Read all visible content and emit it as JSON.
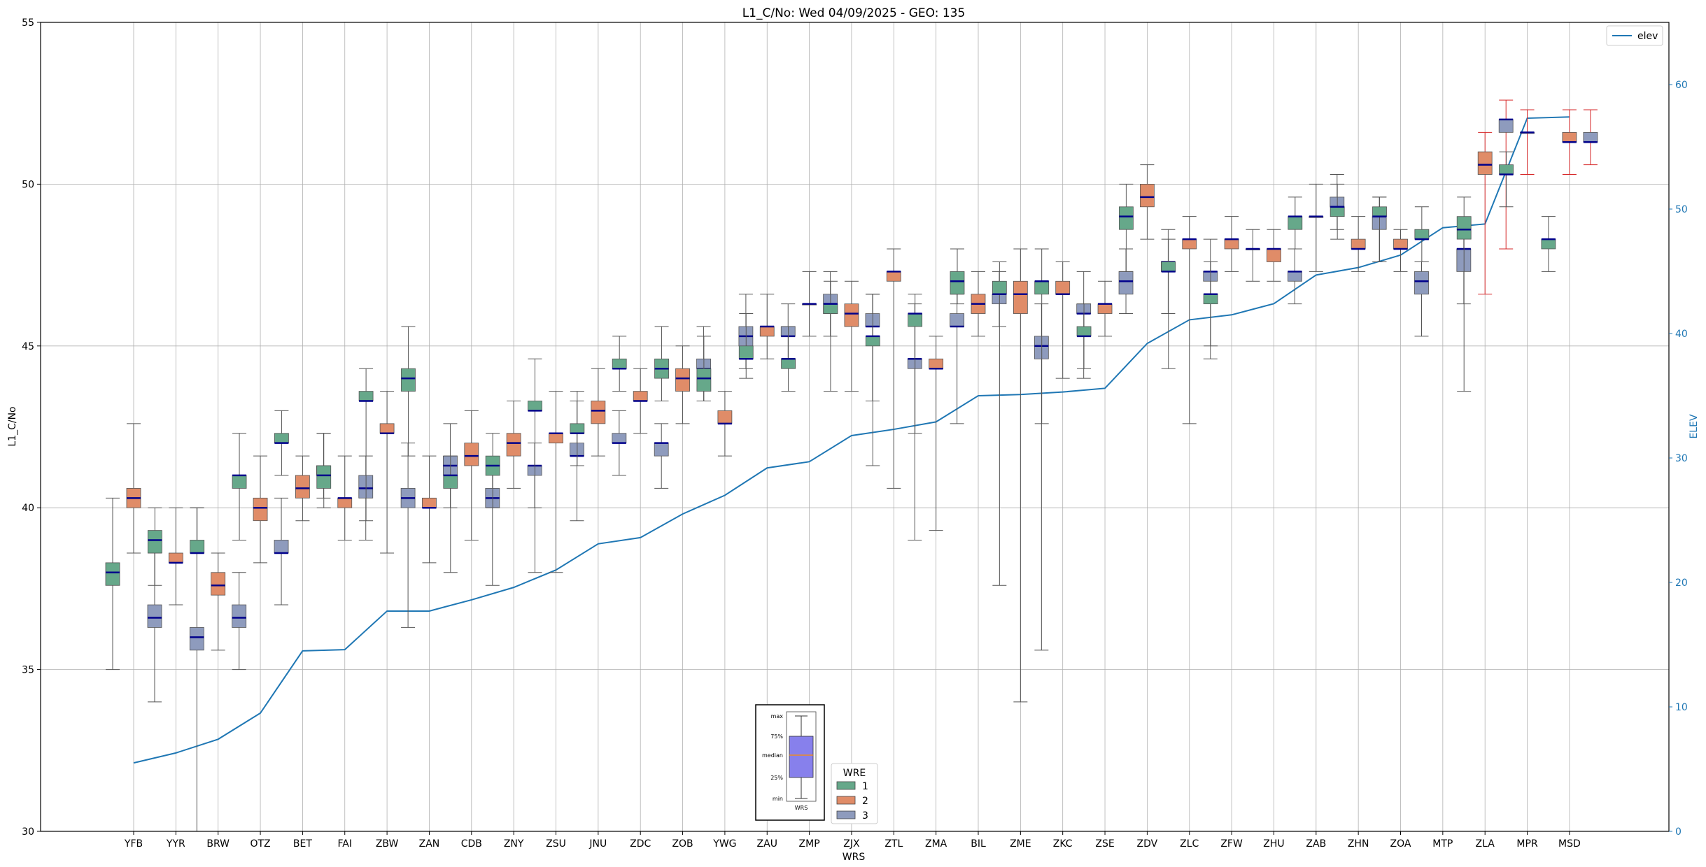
{
  "chart_data": {
    "type": "box",
    "title": "L1_C/No: Wed 04/09/2025 - GEO: 135",
    "xlabel": "WRS",
    "ylabel": "L1_C/No",
    "y2label": "ELEV",
    "ylim": [
      30,
      55
    ],
    "y2lim": [
      0,
      65
    ],
    "yticks": [
      30,
      35,
      40,
      45,
      50,
      55
    ],
    "y2ticks": [
      0,
      10,
      20,
      30,
      40,
      50,
      60
    ],
    "grid": true,
    "colors": {
      "1": "#66a88a",
      "2": "#e08c68",
      "3": "#8e9bbd",
      "elev": "#1f77b4",
      "median": "#00008b",
      "whisker": "#555555",
      "whisker_alt": "#d62728"
    },
    "categories": [
      "YFB",
      "YYR",
      "BRW",
      "OTZ",
      "BET",
      "FAI",
      "ZBW",
      "ZAN",
      "CDB",
      "ZNY",
      "ZSU",
      "JNU",
      "ZDC",
      "ZOB",
      "YWG",
      "ZAU",
      "ZMP",
      "ZJX",
      "ZTL",
      "ZMA",
      "BIL",
      "ZME",
      "ZKC",
      "ZSE",
      "ZDV",
      "ZLC",
      "ZFW",
      "ZHU",
      "ZAB",
      "ZHN",
      "ZOA",
      "MTP",
      "ZLA",
      "MPR",
      "MSD"
    ],
    "elev": {
      "name": "elev",
      "values": [
        5.5,
        6.3,
        7.4,
        9.5,
        14.5,
        14.6,
        17.7,
        17.7,
        18.6,
        19.6,
        21.0,
        23.1,
        23.6,
        25.5,
        27.0,
        29.2,
        29.7,
        31.8,
        32.3,
        32.9,
        35.0,
        35.1,
        35.3,
        35.6,
        39.2,
        41.1,
        41.5,
        42.4,
        44.7,
        45.3,
        46.3,
        48.5,
        48.8,
        57.3,
        57.4
      ]
    },
    "boxes": [
      {
        "station": "YFB",
        "wre": 1,
        "min": 35.0,
        "q1": 37.6,
        "median": 38.0,
        "q3": 38.3,
        "max": 40.3
      },
      {
        "station": "YFB",
        "wre": 2,
        "min": 38.6,
        "q1": 40.0,
        "median": 40.3,
        "q3": 40.6,
        "max": 42.6
      },
      {
        "station": "YFB",
        "wre": 3,
        "min": 34.0,
        "q1": 36.3,
        "median": 36.6,
        "q3": 37.0,
        "max": 38.6
      },
      {
        "station": "YYR",
        "wre": 1,
        "min": 37.6,
        "q1": 38.6,
        "median": 39.0,
        "q3": 39.3,
        "max": 40.0
      },
      {
        "station": "YYR",
        "wre": 2,
        "min": 37.0,
        "q1": 38.3,
        "median": 38.3,
        "q3": 38.6,
        "max": 40.0
      },
      {
        "station": "YYR",
        "wre": 3,
        "min": 30.0,
        "q1": 35.6,
        "median": 36.0,
        "q3": 36.3,
        "max": 40.0
      },
      {
        "station": "BRW",
        "wre": 1,
        "min": 38.6,
        "q1": 38.6,
        "median": 38.6,
        "q3": 39.0,
        "max": 40.0
      },
      {
        "station": "BRW",
        "wre": 2,
        "min": 35.6,
        "q1": 37.3,
        "median": 37.6,
        "q3": 38.0,
        "max": 38.6
      },
      {
        "station": "BRW",
        "wre": 3,
        "min": 35.0,
        "q1": 36.3,
        "median": 36.6,
        "q3": 37.0,
        "max": 38.0
      },
      {
        "station": "OTZ",
        "wre": 1,
        "min": 39.0,
        "q1": 40.6,
        "median": 41.0,
        "q3": 41.0,
        "max": 42.3
      },
      {
        "station": "OTZ",
        "wre": 2,
        "min": 38.3,
        "q1": 39.6,
        "median": 40.0,
        "q3": 40.3,
        "max": 41.6
      },
      {
        "station": "OTZ",
        "wre": 3,
        "min": 37.0,
        "q1": 38.6,
        "median": 38.6,
        "q3": 39.0,
        "max": 40.3
      },
      {
        "station": "BET",
        "wre": 1,
        "min": 41.0,
        "q1": 42.0,
        "median": 42.0,
        "q3": 42.3,
        "max": 43.0
      },
      {
        "station": "BET",
        "wre": 2,
        "min": 39.6,
        "q1": 40.3,
        "median": 40.6,
        "q3": 41.0,
        "max": 41.6
      },
      {
        "station": "BET",
        "wre": 3,
        "min": 40.3,
        "q1": 41.0,
        "median": 41.0,
        "q3": 41.3,
        "max": 42.3
      },
      {
        "station": "FAI",
        "wre": 1,
        "min": 40.0,
        "q1": 40.6,
        "median": 41.0,
        "q3": 41.3,
        "max": 42.3
      },
      {
        "station": "FAI",
        "wre": 2,
        "min": 39.0,
        "q1": 40.0,
        "median": 40.3,
        "q3": 40.3,
        "max": 41.6
      },
      {
        "station": "FAI",
        "wre": 3,
        "min": 39.0,
        "q1": 40.3,
        "median": 40.6,
        "q3": 41.0,
        "max": 41.6
      },
      {
        "station": "ZBW",
        "wre": 1,
        "min": 39.6,
        "q1": 43.3,
        "median": 43.3,
        "q3": 43.6,
        "max": 44.3
      },
      {
        "station": "ZBW",
        "wre": 2,
        "min": 38.6,
        "q1": 42.3,
        "median": 42.3,
        "q3": 42.6,
        "max": 43.6
      },
      {
        "station": "ZBW",
        "wre": 3,
        "min": 36.3,
        "q1": 40.0,
        "median": 40.3,
        "q3": 40.6,
        "max": 42.0
      },
      {
        "station": "ZAN",
        "wre": 1,
        "min": 41.6,
        "q1": 43.6,
        "median": 44.0,
        "q3": 44.3,
        "max": 45.6
      },
      {
        "station": "ZAN",
        "wre": 2,
        "min": 38.3,
        "q1": 40.0,
        "median": 40.0,
        "q3": 40.3,
        "max": 41.6
      },
      {
        "station": "ZAN",
        "wre": 3,
        "min": 40.0,
        "q1": 41.0,
        "median": 41.3,
        "q3": 41.6,
        "max": 42.6
      },
      {
        "station": "CDB",
        "wre": 1,
        "min": 38.0,
        "q1": 40.6,
        "median": 41.0,
        "q3": 41.0,
        "max": 41.6
      },
      {
        "station": "CDB",
        "wre": 2,
        "min": 39.0,
        "q1": 41.3,
        "median": 41.6,
        "q3": 42.0,
        "max": 43.0
      },
      {
        "station": "CDB",
        "wre": 3,
        "min": 37.6,
        "q1": 40.0,
        "median": 40.3,
        "q3": 40.6,
        "max": 41.3
      },
      {
        "station": "ZNY",
        "wre": 1,
        "min": 40.0,
        "q1": 41.0,
        "median": 41.3,
        "q3": 41.6,
        "max": 42.3
      },
      {
        "station": "ZNY",
        "wre": 2,
        "min": 40.6,
        "q1": 41.6,
        "median": 42.0,
        "q3": 42.3,
        "max": 43.3
      },
      {
        "station": "ZNY",
        "wre": 3,
        "min": 40.0,
        "q1": 41.0,
        "median": 41.3,
        "q3": 41.3,
        "max": 42.0
      },
      {
        "station": "ZSU",
        "wre": 1,
        "min": 38.0,
        "q1": 43.0,
        "median": 43.0,
        "q3": 43.3,
        "max": 44.6
      },
      {
        "station": "ZSU",
        "wre": 2,
        "min": 38.0,
        "q1": 42.0,
        "median": 42.3,
        "q3": 42.3,
        "max": 43.6
      },
      {
        "station": "ZSU",
        "wre": 3,
        "min": 39.6,
        "q1": 41.6,
        "median": 41.6,
        "q3": 42.0,
        "max": 43.3
      },
      {
        "station": "JNU",
        "wre": 1,
        "min": 41.3,
        "q1": 42.3,
        "median": 42.3,
        "q3": 42.6,
        "max": 43.6
      },
      {
        "station": "JNU",
        "wre": 2,
        "min": 41.6,
        "q1": 42.6,
        "median": 43.0,
        "q3": 43.3,
        "max": 44.3
      },
      {
        "station": "JNU",
        "wre": 3,
        "min": 41.0,
        "q1": 42.0,
        "median": 42.0,
        "q3": 42.3,
        "max": 43.0
      },
      {
        "station": "ZDC",
        "wre": 1,
        "min": 43.6,
        "q1": 44.3,
        "median": 44.3,
        "q3": 44.6,
        "max": 45.3
      },
      {
        "station": "ZDC",
        "wre": 2,
        "min": 42.3,
        "q1": 43.3,
        "median": 43.3,
        "q3": 43.6,
        "max": 44.3
      },
      {
        "station": "ZDC",
        "wre": 3,
        "min": 40.6,
        "q1": 41.6,
        "median": 42.0,
        "q3": 42.0,
        "max": 42.6
      },
      {
        "station": "ZOB",
        "wre": 1,
        "min": 43.3,
        "q1": 44.0,
        "median": 44.3,
        "q3": 44.6,
        "max": 45.6
      },
      {
        "station": "ZOB",
        "wre": 2,
        "min": 42.6,
        "q1": 43.6,
        "median": 44.0,
        "q3": 44.3,
        "max": 45.0
      },
      {
        "station": "ZOB",
        "wre": 3,
        "min": 43.3,
        "q1": 44.3,
        "median": 44.3,
        "q3": 44.6,
        "max": 45.6
      },
      {
        "station": "YWG",
        "wre": 1,
        "min": 43.3,
        "q1": 43.6,
        "median": 44.0,
        "q3": 44.3,
        "max": 45.3
      },
      {
        "station": "YWG",
        "wre": 2,
        "min": 41.6,
        "q1": 42.6,
        "median": 42.6,
        "q3": 43.0,
        "max": 43.6
      },
      {
        "station": "YWG",
        "wre": 3,
        "min": 44.3,
        "q1": 45.0,
        "median": 45.3,
        "q3": 45.6,
        "max": 46.6
      },
      {
        "station": "ZAU",
        "wre": 1,
        "min": 44.0,
        "q1": 44.6,
        "median": 44.6,
        "q3": 45.0,
        "max": 46.0
      },
      {
        "station": "ZAU",
        "wre": 2,
        "min": 44.6,
        "q1": 45.3,
        "median": 45.6,
        "q3": 45.6,
        "max": 46.6
      },
      {
        "station": "ZAU",
        "wre": 3,
        "min": 44.6,
        "q1": 45.3,
        "median": 45.3,
        "q3": 45.6,
        "max": 46.3
      },
      {
        "station": "ZMP",
        "wre": 1,
        "min": 43.6,
        "q1": 44.3,
        "median": 44.6,
        "q3": 44.6,
        "max": 45.6
      },
      {
        "station": "ZMP",
        "wre": 2,
        "min": 45.3,
        "q1": 46.3,
        "median": 46.3,
        "q3": 46.3,
        "max": 47.3
      },
      {
        "station": "ZMP",
        "wre": 3,
        "min": 45.3,
        "q1": 46.0,
        "median": 46.3,
        "q3": 46.6,
        "max": 47.3
      },
      {
        "station": "ZJX",
        "wre": 1,
        "min": 43.6,
        "q1": 46.0,
        "median": 46.3,
        "q3": 46.3,
        "max": 47.0
      },
      {
        "station": "ZJX",
        "wre": 2,
        "min": 43.6,
        "q1": 45.6,
        "median": 46.0,
        "q3": 46.3,
        "max": 47.0
      },
      {
        "station": "ZJX",
        "wre": 3,
        "min": 43.3,
        "q1": 45.6,
        "median": 45.6,
        "q3": 46.0,
        "max": 46.6
      },
      {
        "station": "ZTL",
        "wre": 1,
        "min": 41.3,
        "q1": 45.0,
        "median": 45.3,
        "q3": 45.3,
        "max": 46.6
      },
      {
        "station": "ZTL",
        "wre": 2,
        "min": 40.6,
        "q1": 47.0,
        "median": 47.3,
        "q3": 47.3,
        "max": 48.0
      },
      {
        "station": "ZTL",
        "wre": 3,
        "min": 39.0,
        "q1": 44.3,
        "median": 44.6,
        "q3": 44.6,
        "max": 46.3
      },
      {
        "station": "ZMA",
        "wre": 1,
        "min": 42.3,
        "q1": 45.6,
        "median": 46.0,
        "q3": 46.0,
        "max": 46.6
      },
      {
        "station": "ZMA",
        "wre": 2,
        "min": 39.3,
        "q1": 44.3,
        "median": 44.3,
        "q3": 44.6,
        "max": 45.3
      },
      {
        "station": "ZMA",
        "wre": 3,
        "min": 42.6,
        "q1": 45.6,
        "median": 45.6,
        "q3": 46.0,
        "max": 46.6
      },
      {
        "station": "BIL",
        "wre": 1,
        "min": 46.3,
        "q1": 46.6,
        "median": 47.0,
        "q3": 47.3,
        "max": 48.0
      },
      {
        "station": "BIL",
        "wre": 2,
        "min": 45.3,
        "q1": 46.0,
        "median": 46.3,
        "q3": 46.6,
        "max": 47.3
      },
      {
        "station": "BIL",
        "wre": 3,
        "min": 45.6,
        "q1": 46.3,
        "median": 46.6,
        "q3": 46.6,
        "max": 47.3
      },
      {
        "station": "ZME",
        "wre": 1,
        "min": 37.6,
        "q1": 46.6,
        "median": 46.6,
        "q3": 47.0,
        "max": 47.6
      },
      {
        "station": "ZME",
        "wre": 2,
        "min": 34.0,
        "q1": 46.0,
        "median": 46.6,
        "q3": 47.0,
        "max": 48.0
      },
      {
        "station": "ZME",
        "wre": 3,
        "min": 35.6,
        "q1": 44.6,
        "median": 45.0,
        "q3": 45.3,
        "max": 46.3
      },
      {
        "station": "ZKC",
        "wre": 1,
        "min": 42.6,
        "q1": 46.6,
        "median": 47.0,
        "q3": 47.0,
        "max": 48.0
      },
      {
        "station": "ZKC",
        "wre": 2,
        "min": 44.0,
        "q1": 46.6,
        "median": 46.6,
        "q3": 47.0,
        "max": 47.6
      },
      {
        "station": "ZKC",
        "wre": 3,
        "min": 44.0,
        "q1": 46.0,
        "median": 46.0,
        "q3": 46.3,
        "max": 47.3
      },
      {
        "station": "ZSE",
        "wre": 1,
        "min": 44.3,
        "q1": 45.3,
        "median": 45.3,
        "q3": 45.6,
        "max": 46.3
      },
      {
        "station": "ZSE",
        "wre": 2,
        "min": 45.3,
        "q1": 46.0,
        "median": 46.3,
        "q3": 46.3,
        "max": 47.0
      },
      {
        "station": "ZSE",
        "wre": 3,
        "min": 46.0,
        "q1": 46.6,
        "median": 47.0,
        "q3": 47.3,
        "max": 48.0
      },
      {
        "station": "ZDV",
        "wre": 1,
        "min": 47.3,
        "q1": 48.6,
        "median": 49.0,
        "q3": 49.3,
        "max": 50.0
      },
      {
        "station": "ZDV",
        "wre": 2,
        "min": 48.3,
        "q1": 49.3,
        "median": 49.6,
        "q3": 50.0,
        "max": 50.6
      },
      {
        "station": "ZDV",
        "wre": 3,
        "min": 46.0,
        "q1": 47.3,
        "median": 47.6,
        "q3": 47.6,
        "max": 48.6
      },
      {
        "station": "ZLC",
        "wre": 1,
        "min": 44.3,
        "q1": 47.3,
        "median": 47.3,
        "q3": 47.6,
        "max": 48.3
      },
      {
        "station": "ZLC",
        "wre": 2,
        "min": 42.6,
        "q1": 48.0,
        "median": 48.3,
        "q3": 48.3,
        "max": 49.0
      },
      {
        "station": "ZLC",
        "wre": 3,
        "min": 44.6,
        "q1": 47.0,
        "median": 47.3,
        "q3": 47.3,
        "max": 48.3
      },
      {
        "station": "ZFW",
        "wre": 1,
        "min": 45.0,
        "q1": 46.3,
        "median": 46.6,
        "q3": 46.6,
        "max": 47.6
      },
      {
        "station": "ZFW",
        "wre": 2,
        "min": 47.3,
        "q1": 48.0,
        "median": 48.3,
        "q3": 48.3,
        "max": 49.0
      },
      {
        "station": "ZHU",
        "wre": 1,
        "min": 47.0,
        "q1": 48.0,
        "median": 48.0,
        "q3": 48.0,
        "max": 48.6
      },
      {
        "station": "ZHU",
        "wre": 2,
        "min": 47.0,
        "q1": 47.6,
        "median": 48.0,
        "q3": 48.0,
        "max": 48.6
      },
      {
        "station": "ZHU",
        "wre": 3,
        "min": 46.3,
        "q1": 47.0,
        "median": 47.3,
        "q3": 47.3,
        "max": 48.0
      },
      {
        "station": "ZAB",
        "wre": 1,
        "min": 48.0,
        "q1": 48.6,
        "median": 49.0,
        "q3": 49.0,
        "max": 49.6
      },
      {
        "station": "ZAB",
        "wre": 2,
        "min": 47.3,
        "q1": 49.0,
        "median": 49.0,
        "q3": 49.0,
        "max": 50.0
      },
      {
        "station": "ZAB",
        "wre": 3,
        "min": 48.6,
        "q1": 49.3,
        "median": 49.3,
        "q3": 49.6,
        "max": 50.3
      },
      {
        "station": "ZHN",
        "wre": 1,
        "min": 48.3,
        "q1": 49.0,
        "median": 49.3,
        "q3": 49.3,
        "max": 50.0
      },
      {
        "station": "ZHN",
        "wre": 2,
        "min": 47.3,
        "q1": 48.0,
        "median": 48.0,
        "q3": 48.3,
        "max": 49.0
      },
      {
        "station": "ZHN",
        "wre": 3,
        "min": 47.6,
        "q1": 48.6,
        "median": 49.0,
        "q3": 49.0,
        "max": 49.6
      },
      {
        "station": "ZOA",
        "wre": 1,
        "min": 47.6,
        "q1": 49.0,
        "median": 49.0,
        "q3": 49.3,
        "max": 49.6
      },
      {
        "station": "ZOA",
        "wre": 2,
        "min": 47.3,
        "q1": 48.0,
        "median": 48.0,
        "q3": 48.3,
        "max": 48.6
      },
      {
        "station": "ZOA",
        "wre": 3,
        "min": 45.3,
        "q1": 46.6,
        "median": 47.0,
        "q3": 47.3,
        "max": 47.6
      },
      {
        "station": "MTP",
        "wre": 1,
        "min": 47.6,
        "q1": 48.3,
        "median": 48.3,
        "q3": 48.6,
        "max": 49.3
      },
      {
        "station": "MTP",
        "wre": 3,
        "min": 46.3,
        "q1": 47.3,
        "median": 48.0,
        "q3": 48.0,
        "max": 48.6
      },
      {
        "station": "ZLA",
        "wre": 1,
        "min": 43.6,
        "q1": 48.3,
        "median": 48.6,
        "q3": 49.0,
        "max": 49.6
      },
      {
        "station": "ZLA",
        "wre": 2,
        "min": 46.6,
        "q1": 50.3,
        "median": 50.6,
        "q3": 51.0,
        "max": 51.6
      },
      {
        "station": "ZLA",
        "wre": 3,
        "min": 48.0,
        "q1": 51.6,
        "median": 52.0,
        "q3": 52.0,
        "max": 52.6
      },
      {
        "station": "MPR",
        "wre": 1,
        "min": 49.3,
        "q1": 50.3,
        "median": 50.3,
        "q3": 50.6,
        "max": 51.0
      },
      {
        "station": "MPR",
        "wre": 2,
        "min": 50.3,
        "q1": 51.6,
        "median": 51.6,
        "q3": 51.6,
        "max": 52.3
      },
      {
        "station": "MSD",
        "wre": 1,
        "min": 47.3,
        "q1": 48.0,
        "median": 48.3,
        "q3": 48.3,
        "max": 49.0
      },
      {
        "station": "MSD",
        "wre": 2,
        "min": 50.3,
        "q1": 51.3,
        "median": 51.3,
        "q3": 51.6,
        "max": 52.3
      },
      {
        "station": "MSD",
        "wre": 3,
        "min": 50.6,
        "q1": 51.3,
        "median": 51.3,
        "q3": 51.6,
        "max": 52.3
      }
    ],
    "legend_wre": {
      "title": "WRE",
      "entries": [
        "1",
        "2",
        "3"
      ]
    },
    "legend_elev": "elev",
    "explainer": {
      "labels": [
        "max",
        "75%",
        "median",
        "25%",
        "min"
      ],
      "caption": "WRS"
    }
  }
}
